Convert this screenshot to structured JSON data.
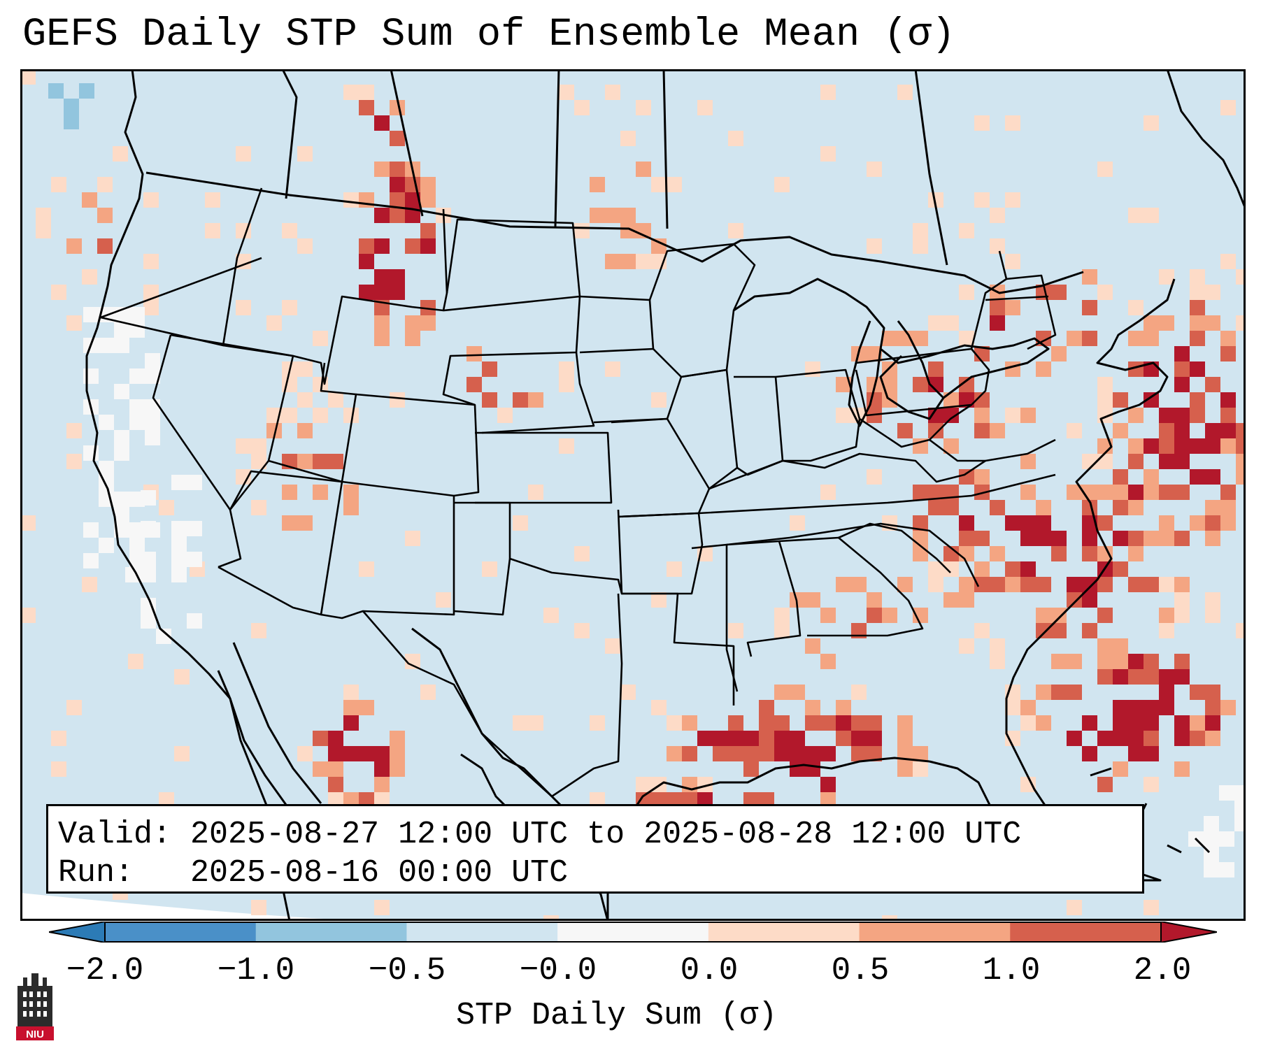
{
  "title": "GEFS Daily STP Sum of Ensemble Mean (σ)",
  "legend": {
    "valid_prefix": "Valid:",
    "valid_value": "2025-08-27 12:00 UTC to 2025-08-28 12:00 UTC",
    "run_prefix": "Run:",
    "run_value": "2025-08-16 00:00 UTC"
  },
  "colorbar": {
    "label": "STP Daily Sum (σ)",
    "ticks": [
      "−2.0",
      "−1.0",
      "−0.5",
      "−0.0",
      "0.0",
      "0.5",
      "1.0",
      "2.0"
    ],
    "colors": [
      "#2c7bb6",
      "#4a90c8",
      "#92c5de",
      "#d1e5f0",
      "#f7f7f7",
      "#fddbc7",
      "#f4a582",
      "#d6604d",
      "#b2182b"
    ]
  },
  "map": {
    "background_color": "#d1e5f0",
    "outline_color": "#000000"
  },
  "logo": {
    "text": "NIU",
    "color": "#c8102e"
  }
}
